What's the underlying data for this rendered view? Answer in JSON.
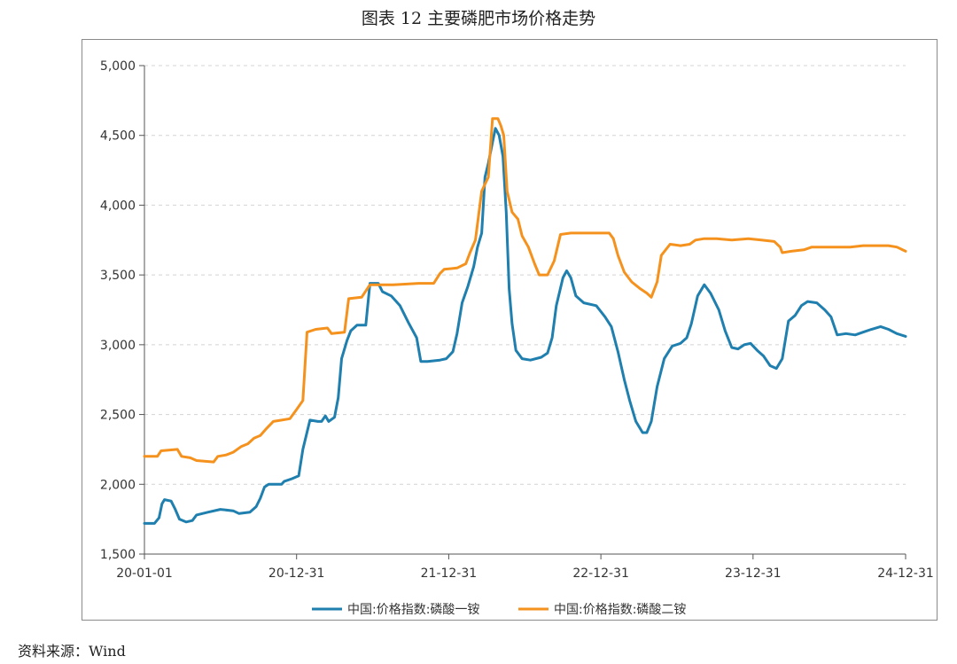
{
  "page": {
    "title": "图表 12    主要磷肥市场价格走势",
    "source": "资料来源：Wind"
  },
  "chart_data": {
    "type": "line",
    "title": "图表 12    主要磷肥市场价格走势",
    "xlabel": "",
    "ylabel": "",
    "x_ticks": [
      "20-01-01",
      "20-12-31",
      "21-12-31",
      "22-12-31",
      "23-12-31",
      "24-12-31"
    ],
    "y_ticks": [
      "1,500",
      "2,000",
      "2,500",
      "3,000",
      "3,500",
      "4,000",
      "4,500",
      "5,000"
    ],
    "ylim": [
      1500,
      5000
    ],
    "xlim": [
      "2020-01-01",
      "2024-12-31"
    ],
    "grid": "horizontal-dashed",
    "legend_position": "bottom",
    "series": [
      {
        "name": "中国:价格指数:磷酸一铵",
        "color": "#1f7fae",
        "points": [
          [
            "2020-01-01",
            1720
          ],
          [
            "2020-01-25",
            1720
          ],
          [
            "2020-02-05",
            1760
          ],
          [
            "2020-02-12",
            1860
          ],
          [
            "2020-02-18",
            1890
          ],
          [
            "2020-03-05",
            1880
          ],
          [
            "2020-03-15",
            1820
          ],
          [
            "2020-03-25",
            1750
          ],
          [
            "2020-04-10",
            1730
          ],
          [
            "2020-04-25",
            1740
          ],
          [
            "2020-05-05",
            1780
          ],
          [
            "2020-06-01",
            1800
          ],
          [
            "2020-07-01",
            1820
          ],
          [
            "2020-08-01",
            1810
          ],
          [
            "2020-08-15",
            1790
          ],
          [
            "2020-09-10",
            1800
          ],
          [
            "2020-09-25",
            1840
          ],
          [
            "2020-10-05",
            1900
          ],
          [
            "2020-10-15",
            1980
          ],
          [
            "2020-10-25",
            2000
          ],
          [
            "2020-11-25",
            2000
          ],
          [
            "2020-12-01",
            2020
          ],
          [
            "2020-12-20",
            2040
          ],
          [
            "2021-01-05",
            2060
          ],
          [
            "2021-01-15",
            2250
          ],
          [
            "2021-02-01",
            2460
          ],
          [
            "2021-02-20",
            2450
          ],
          [
            "2021-03-01",
            2450
          ],
          [
            "2021-03-10",
            2490
          ],
          [
            "2021-03-18",
            2450
          ],
          [
            "2021-04-01",
            2480
          ],
          [
            "2021-04-10",
            2620
          ],
          [
            "2021-04-18",
            2900
          ],
          [
            "2021-05-01",
            3030
          ],
          [
            "2021-05-10",
            3100
          ],
          [
            "2021-05-25",
            3140
          ],
          [
            "2021-06-15",
            3140
          ],
          [
            "2021-06-25",
            3440
          ],
          [
            "2021-07-15",
            3440
          ],
          [
            "2021-07-25",
            3380
          ],
          [
            "2021-08-15",
            3350
          ],
          [
            "2021-09-05",
            3280
          ],
          [
            "2021-09-25",
            3160
          ],
          [
            "2021-10-15",
            3050
          ],
          [
            "2021-10-25",
            2880
          ],
          [
            "2021-11-10",
            2880
          ],
          [
            "2021-12-10",
            2890
          ],
          [
            "2021-12-25",
            2900
          ],
          [
            "2022-01-10",
            2950
          ],
          [
            "2022-01-20",
            3080
          ],
          [
            "2022-02-01",
            3300
          ],
          [
            "2022-02-15",
            3420
          ],
          [
            "2022-03-01",
            3560
          ],
          [
            "2022-03-10",
            3700
          ],
          [
            "2022-03-20",
            3800
          ],
          [
            "2022-03-28",
            4200
          ],
          [
            "2022-04-05",
            4300
          ],
          [
            "2022-04-15",
            4450
          ],
          [
            "2022-04-22",
            4550
          ],
          [
            "2022-05-01",
            4500
          ],
          [
            "2022-05-10",
            4350
          ],
          [
            "2022-05-18",
            3950
          ],
          [
            "2022-05-25",
            3400
          ],
          [
            "2022-06-01",
            3150
          ],
          [
            "2022-06-10",
            2960
          ],
          [
            "2022-06-25",
            2900
          ],
          [
            "2022-07-15",
            2890
          ],
          [
            "2022-08-10",
            2910
          ],
          [
            "2022-08-25",
            2940
          ],
          [
            "2022-09-05",
            3050
          ],
          [
            "2022-09-15",
            3280
          ],
          [
            "2022-10-01",
            3480
          ],
          [
            "2022-10-10",
            3530
          ],
          [
            "2022-10-20",
            3480
          ],
          [
            "2022-11-01",
            3350
          ],
          [
            "2022-11-20",
            3300
          ],
          [
            "2022-12-20",
            3280
          ],
          [
            "2023-01-10",
            3200
          ],
          [
            "2023-01-25",
            3130
          ],
          [
            "2023-02-10",
            2950
          ],
          [
            "2023-02-25",
            2750
          ],
          [
            "2023-03-10",
            2600
          ],
          [
            "2023-03-25",
            2450
          ],
          [
            "2023-04-10",
            2370
          ],
          [
            "2023-04-20",
            2370
          ],
          [
            "2023-05-01",
            2450
          ],
          [
            "2023-05-15",
            2700
          ],
          [
            "2023-06-01",
            2900
          ],
          [
            "2023-06-20",
            2990
          ],
          [
            "2023-07-10",
            3010
          ],
          [
            "2023-07-25",
            3050
          ],
          [
            "2023-08-05",
            3150
          ],
          [
            "2023-08-20",
            3350
          ],
          [
            "2023-09-05",
            3430
          ],
          [
            "2023-09-20",
            3370
          ],
          [
            "2023-10-10",
            3250
          ],
          [
            "2023-10-25",
            3100
          ],
          [
            "2023-11-10",
            2980
          ],
          [
            "2023-11-25",
            2970
          ],
          [
            "2023-12-10",
            3000
          ],
          [
            "2023-12-25",
            3010
          ],
          [
            "2024-01-10",
            2960
          ],
          [
            "2024-01-25",
            2920
          ],
          [
            "2024-02-10",
            2850
          ],
          [
            "2024-02-25",
            2830
          ],
          [
            "2024-03-10",
            2900
          ],
          [
            "2024-03-25",
            3170
          ],
          [
            "2024-04-10",
            3210
          ],
          [
            "2024-04-25",
            3280
          ],
          [
            "2024-05-10",
            3310
          ],
          [
            "2024-06-01",
            3300
          ],
          [
            "2024-06-20",
            3250
          ],
          [
            "2024-07-05",
            3200
          ],
          [
            "2024-07-20",
            3070
          ],
          [
            "2024-08-10",
            3080
          ],
          [
            "2024-09-01",
            3070
          ],
          [
            "2024-09-20",
            3090
          ],
          [
            "2024-10-10",
            3110
          ],
          [
            "2024-11-01",
            3130
          ],
          [
            "2024-11-20",
            3110
          ],
          [
            "2024-12-10",
            3080
          ],
          [
            "2024-12-31",
            3060
          ]
        ]
      },
      {
        "name": "中国:价格指数:磷酸二铵",
        "color": "#f5921e",
        "points": [
          [
            "2020-01-01",
            2200
          ],
          [
            "2020-02-01",
            2200
          ],
          [
            "2020-02-10",
            2240
          ],
          [
            "2020-03-20",
            2250
          ],
          [
            "2020-03-30",
            2200
          ],
          [
            "2020-04-20",
            2190
          ],
          [
            "2020-05-05",
            2170
          ],
          [
            "2020-06-15",
            2160
          ],
          [
            "2020-06-25",
            2200
          ],
          [
            "2020-07-15",
            2210
          ],
          [
            "2020-08-01",
            2230
          ],
          [
            "2020-08-20",
            2270
          ],
          [
            "2020-09-05",
            2290
          ],
          [
            "2020-09-20",
            2330
          ],
          [
            "2020-10-05",
            2350
          ],
          [
            "2020-10-20",
            2400
          ],
          [
            "2020-11-05",
            2450
          ],
          [
            "2020-11-25",
            2460
          ],
          [
            "2020-12-15",
            2470
          ],
          [
            "2021-01-01",
            2540
          ],
          [
            "2021-01-15",
            2600
          ],
          [
            "2021-01-25",
            3090
          ],
          [
            "2021-02-15",
            3110
          ],
          [
            "2021-03-15",
            3120
          ],
          [
            "2021-03-25",
            3080
          ],
          [
            "2021-04-25",
            3090
          ],
          [
            "2021-05-05",
            3330
          ],
          [
            "2021-06-05",
            3340
          ],
          [
            "2021-06-25",
            3430
          ],
          [
            "2021-08-20",
            3430
          ],
          [
            "2021-10-20",
            3440
          ],
          [
            "2021-11-25",
            3440
          ],
          [
            "2021-12-10",
            3510
          ],
          [
            "2021-12-20",
            3540
          ],
          [
            "2022-01-20",
            3550
          ],
          [
            "2022-02-10",
            3580
          ],
          [
            "2022-02-20",
            3660
          ],
          [
            "2022-03-05",
            3750
          ],
          [
            "2022-03-20",
            4100
          ],
          [
            "2022-03-28",
            4150
          ],
          [
            "2022-04-05",
            4200
          ],
          [
            "2022-04-15",
            4620
          ],
          [
            "2022-04-28",
            4620
          ],
          [
            "2022-05-05",
            4570
          ],
          [
            "2022-05-12",
            4500
          ],
          [
            "2022-05-20",
            4100
          ],
          [
            "2022-06-01",
            3950
          ],
          [
            "2022-06-15",
            3900
          ],
          [
            "2022-06-25",
            3780
          ],
          [
            "2022-07-10",
            3700
          ],
          [
            "2022-07-25",
            3580
          ],
          [
            "2022-08-05",
            3500
          ],
          [
            "2022-08-25",
            3500
          ],
          [
            "2022-09-10",
            3600
          ],
          [
            "2022-09-25",
            3790
          ],
          [
            "2022-10-20",
            3800
          ],
          [
            "2022-11-20",
            3800
          ],
          [
            "2023-01-20",
            3800
          ],
          [
            "2023-01-30",
            3760
          ],
          [
            "2023-02-10",
            3640
          ],
          [
            "2023-02-25",
            3520
          ],
          [
            "2023-03-15",
            3450
          ],
          [
            "2023-04-05",
            3400
          ],
          [
            "2023-04-20",
            3370
          ],
          [
            "2023-05-01",
            3340
          ],
          [
            "2023-05-15",
            3450
          ],
          [
            "2023-05-25",
            3640
          ],
          [
            "2023-06-15",
            3720
          ],
          [
            "2023-07-10",
            3710
          ],
          [
            "2023-08-01",
            3720
          ],
          [
            "2023-08-15",
            3750
          ],
          [
            "2023-09-05",
            3760
          ],
          [
            "2023-10-05",
            3760
          ],
          [
            "2023-11-10",
            3750
          ],
          [
            "2023-12-20",
            3760
          ],
          [
            "2024-01-20",
            3750
          ],
          [
            "2024-02-20",
            3740
          ],
          [
            "2024-03-05",
            3700
          ],
          [
            "2024-03-10",
            3660
          ],
          [
            "2024-04-01",
            3670
          ],
          [
            "2024-05-01",
            3680
          ],
          [
            "2024-05-20",
            3700
          ],
          [
            "2024-06-20",
            3700
          ],
          [
            "2024-08-20",
            3700
          ],
          [
            "2024-09-20",
            3710
          ],
          [
            "2024-11-20",
            3710
          ],
          [
            "2024-12-10",
            3700
          ],
          [
            "2024-12-31",
            3670
          ]
        ]
      }
    ]
  }
}
